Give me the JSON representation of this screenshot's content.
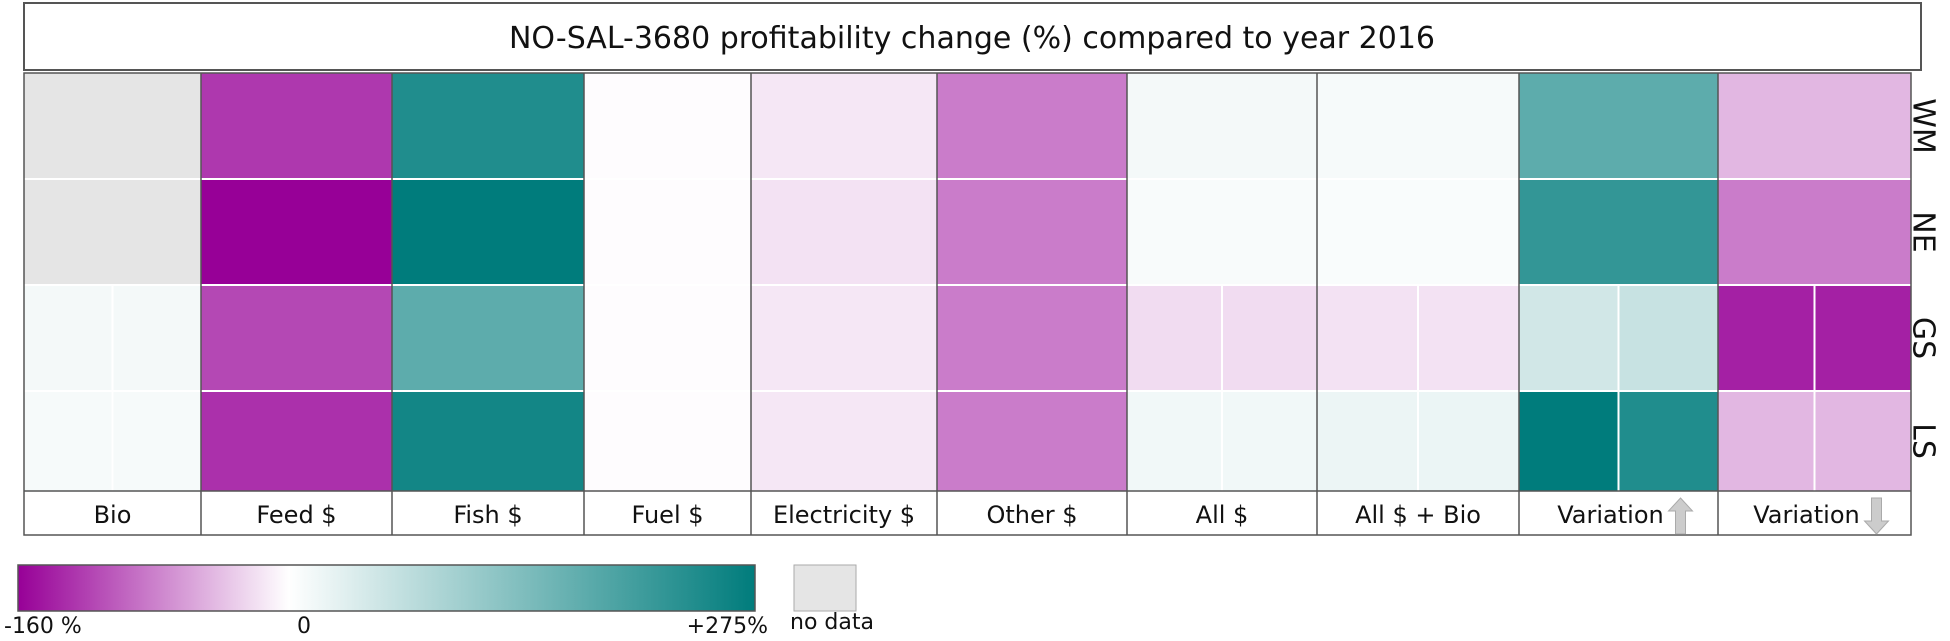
{
  "chart_data": {
    "type": "heatmap",
    "title": "NO-SAL-3680 profitability change (%) compared to year 2016",
    "columns": [
      "Bio",
      "Feed $",
      "Fish $",
      "Fuel $",
      "Electricity $",
      "Other $",
      "All $",
      "All $ + Bio",
      "Variation",
      "Variation"
    ],
    "column_arrows": [
      "",
      "",
      "",
      "",
      "",
      "",
      "",
      "",
      "up",
      "down"
    ],
    "rows": [
      "WM",
      "NE",
      "GS",
      "LS"
    ],
    "cells": [
      [
        [
          null
        ],
        [
          -125
        ],
        [
          240
        ],
        [
          -2
        ],
        [
          -15
        ],
        [
          -82
        ],
        [
          12
        ],
        [
          10
        ],
        [
          175
        ],
        [
          -45
        ]
      ],
      [
        [
          null
        ],
        [
          -160
        ],
        [
          275
        ],
        [
          -2
        ],
        [
          -18
        ],
        [
          -82
        ],
        [
          8
        ],
        [
          6
        ],
        [
          220
        ],
        [
          -82
        ]
      ],
      [
        [
          12,
          12
        ],
        [
          -115
        ],
        [
          175
        ],
        [
          -2
        ],
        [
          -15
        ],
        [
          -82
        ],
        [
          -22,
          -22
        ],
        [
          -18,
          -18
        ],
        [
          50,
          60
        ],
        [
          -140,
          -140
        ]
      ],
      [
        [
          10,
          10
        ],
        [
          -130
        ],
        [
          255
        ],
        [
          -2
        ],
        [
          -15
        ],
        [
          -82
        ],
        [
          15,
          15
        ],
        [
          20,
          22
        ],
        [
          275,
          240
        ],
        [
          -45,
          -45
        ]
      ]
    ],
    "colorbar": {
      "min": -160,
      "max": 275,
      "min_label": "-160 %",
      "mid_label": "0",
      "max_label": "+275%",
      "min_color": "#970097",
      "mid_color": "#ffffff",
      "max_color": "#007c7c"
    },
    "no_data_label": "no data",
    "no_data_color": "#e5e5e5",
    "arrow_color": "#cccccc"
  }
}
